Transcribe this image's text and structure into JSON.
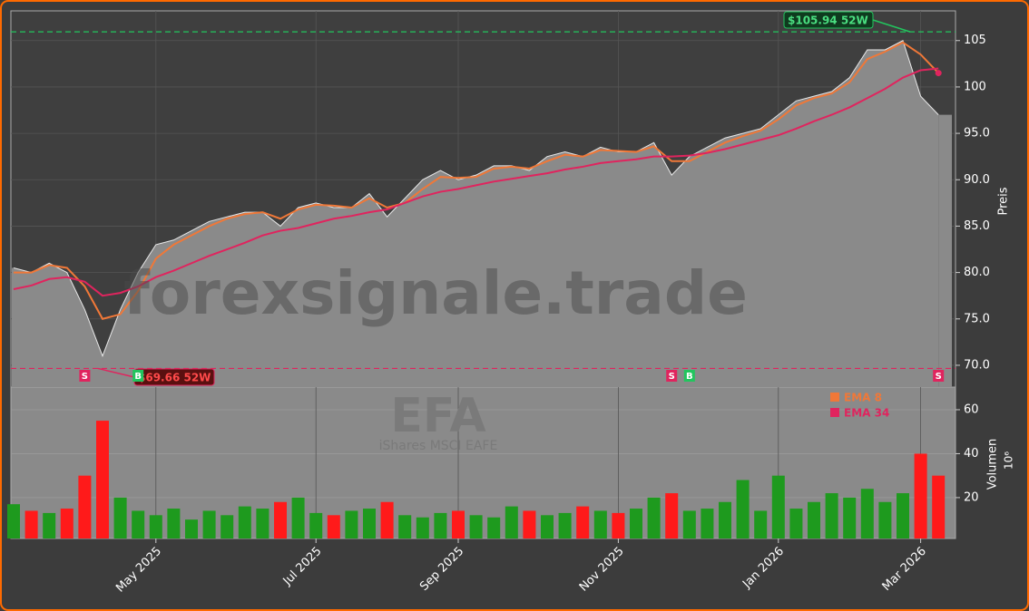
{
  "chart_data": {
    "type": "price-volume",
    "title": "EFA",
    "subtitle": "iShares MSCI EAFE",
    "watermark": "forexsignale.trade",
    "y_label": "Preis",
    "y2_label": "Volumen",
    "y2_unit": "10⁶",
    "categories": [
      null,
      null,
      null,
      null,
      null,
      null,
      null,
      null,
      "May 2025",
      null,
      null,
      null,
      null,
      null,
      null,
      null,
      null,
      "Jul 2025",
      null,
      null,
      null,
      null,
      null,
      null,
      null,
      "Sep 2025",
      null,
      null,
      null,
      null,
      null,
      null,
      null,
      null,
      "Nov 2025",
      null,
      null,
      null,
      null,
      null,
      null,
      null,
      null,
      "Jan 2026",
      null,
      null,
      null,
      null,
      null,
      null,
      null,
      "Mar 2026",
      null
    ],
    "series": [
      {
        "name": "Close",
        "color": "#8a8a8a",
        "values": [
          80.5,
          80,
          81,
          80,
          76,
          71,
          76,
          80,
          83,
          83.5,
          84.5,
          85.5,
          86,
          86.5,
          86.5,
          85,
          87,
          87.5,
          87,
          87,
          88.5,
          86,
          88,
          90,
          91,
          90,
          90.5,
          91.5,
          91.5,
          91,
          92.5,
          93,
          92.5,
          93.5,
          93,
          93,
          94,
          90.5,
          92.5,
          93.5,
          94.5,
          95,
          95.5,
          97,
          98.5,
          99,
          99.5,
          101,
          104,
          104,
          105,
          99,
          97
        ]
      },
      {
        "name": "EMA 8",
        "color": "#f07838",
        "values": [
          80,
          80,
          80.8,
          80.5,
          78.5,
          75,
          75.5,
          78,
          81.5,
          83,
          84,
          85,
          85.8,
          86.3,
          86.5,
          85.8,
          86.8,
          87.3,
          87.2,
          87,
          88,
          87,
          87.5,
          89,
          90.3,
          90.2,
          90.3,
          91.2,
          91.4,
          91.2,
          92,
          92.7,
          92.5,
          93.2,
          93.1,
          93,
          93.6,
          92,
          92,
          93,
          94,
          94.7,
          95.3,
          96.5,
          98,
          98.8,
          99.3,
          100.5,
          103,
          103.8,
          104.8,
          103.5,
          101.5
        ]
      },
      {
        "name": "EMA 34",
        "color": "#e0245e",
        "values": [
          78.2,
          78.6,
          79.3,
          79.5,
          79,
          77.5,
          77.8,
          78.5,
          79.5,
          80.2,
          81,
          81.8,
          82.5,
          83.2,
          84,
          84.5,
          84.8,
          85.3,
          85.8,
          86.1,
          86.5,
          86.8,
          87.5,
          88.2,
          88.7,
          89,
          89.4,
          89.8,
          90.1,
          90.4,
          90.7,
          91.1,
          91.4,
          91.8,
          92,
          92.2,
          92.5,
          92.5,
          92.6,
          92.9,
          93.3,
          93.8,
          94.3,
          94.8,
          95.5,
          96.3,
          97,
          97.8,
          98.8,
          99.8,
          101,
          101.8,
          102
        ]
      },
      {
        "name": "Volumen",
        "axis": "y2",
        "up_color": "#1e9a1e",
        "down_color": "#ff1a1a",
        "values": [
          17,
          14,
          13,
          15,
          30,
          55,
          20,
          14,
          12,
          15,
          10,
          14,
          12,
          16,
          15,
          18,
          20,
          13,
          12,
          14,
          15,
          18,
          12,
          11,
          13,
          14,
          12,
          11,
          16,
          14,
          12,
          13,
          16,
          14,
          13,
          15,
          20,
          22,
          14,
          15,
          18,
          28,
          14,
          30,
          15,
          18,
          22,
          20,
          24,
          18,
          22,
          40,
          30
        ]
      }
    ],
    "signals": [
      null,
      null,
      null,
      null,
      "S",
      null,
      null,
      "B",
      null,
      null,
      null,
      null,
      null,
      null,
      null,
      null,
      null,
      null,
      null,
      null,
      null,
      null,
      null,
      null,
      null,
      null,
      null,
      null,
      null,
      null,
      null,
      null,
      null,
      null,
      null,
      null,
      null,
      "S",
      "B",
      null,
      null,
      null,
      null,
      null,
      null,
      null,
      null,
      null,
      null,
      null,
      null,
      null,
      "S"
    ],
    "annotations": [
      {
        "text": "$105.94 52W",
        "value": 105.94,
        "color": "#22c55e"
      },
      {
        "text": "$69.66 52W",
        "value": 69.66,
        "color": "#e0245e"
      }
    ],
    "ylim": [
      67.65,
      108.2
    ],
    "yticks": [
      {
        "value": 70,
        "label": "70.0"
      },
      {
        "value": 75,
        "label": "75.0"
      },
      {
        "value": 80,
        "label": "80.0"
      },
      {
        "value": 85,
        "label": "85.0"
      },
      {
        "value": 90,
        "label": "90.0"
      },
      {
        "value": 95,
        "label": "95.0"
      },
      {
        "value": 100,
        "label": "100"
      },
      {
        "value": 105,
        "label": "105"
      }
    ],
    "y2lim": [
      1.4,
      70.3
    ],
    "y2ticks": [
      20,
      40,
      60
    ],
    "grid": true
  }
}
